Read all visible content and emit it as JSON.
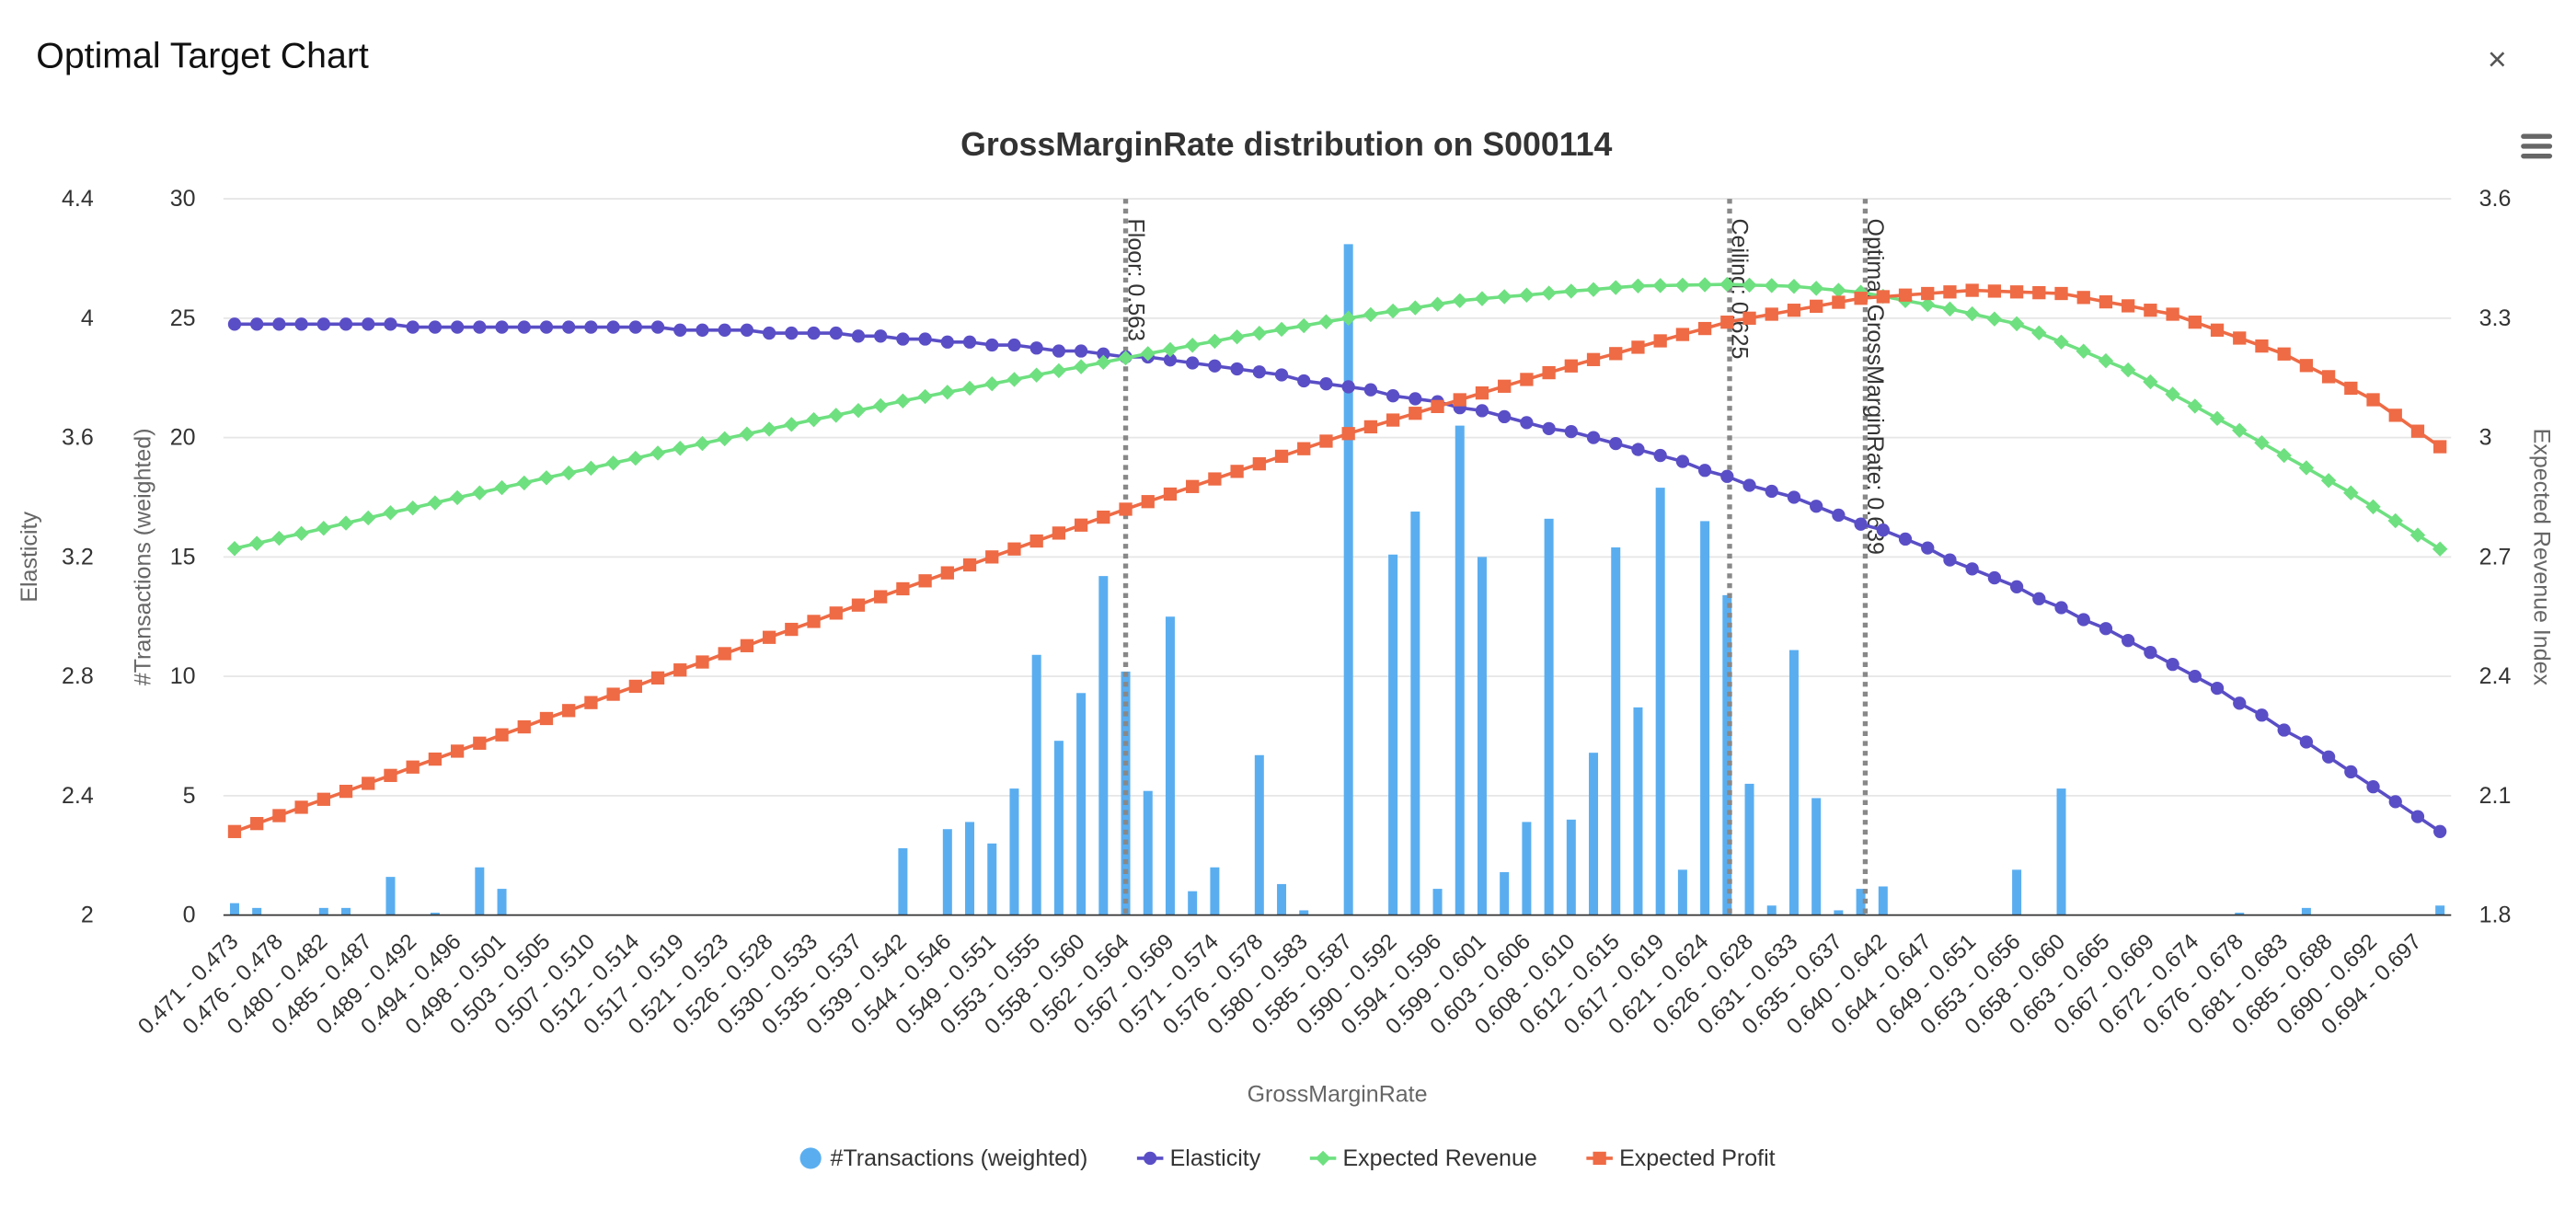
{
  "header": {
    "title": "Optimal Target Chart",
    "close": "×"
  },
  "chart_data": {
    "type": "combo",
    "title": "GrossMarginRate distribution on S000114",
    "x_label": "GrossMarginRate",
    "categories": [
      "0.471 - 0.473",
      null,
      "0.476 - 0.478",
      null,
      "0.480 - 0.482",
      null,
      "0.485 - 0.487",
      null,
      "0.489 - 0.492",
      null,
      "0.494 - 0.496",
      null,
      "0.498 - 0.501",
      null,
      "0.503 - 0.505",
      null,
      "0.507 - 0.510",
      null,
      "0.512 - 0.514",
      null,
      "0.517 - 0.519",
      null,
      "0.521 - 0.523",
      null,
      "0.526 - 0.528",
      null,
      "0.530 - 0.533",
      null,
      "0.535 - 0.537",
      null,
      "0.539 - 0.542",
      null,
      "0.544 - 0.546",
      null,
      "0.549 - 0.551",
      null,
      "0.553 - 0.555",
      null,
      "0.558 - 0.560",
      null,
      "0.562 - 0.564",
      null,
      "0.567 - 0.569",
      null,
      "0.571 - 0.574",
      null,
      "0.576 - 0.578",
      null,
      "0.580 - 0.583",
      null,
      "0.585 - 0.587",
      null,
      "0.590 - 0.592",
      null,
      "0.594 - 0.596",
      null,
      "0.599 - 0.601",
      null,
      "0.603 - 0.606",
      null,
      "0.608 - 0.610",
      null,
      "0.612 - 0.615",
      null,
      "0.617 - 0.619",
      null,
      "0.621 - 0.624",
      null,
      "0.626 - 0.628",
      null,
      "0.631 - 0.633",
      null,
      "0.635 - 0.637",
      null,
      "0.640 - 0.642",
      null,
      "0.644 - 0.647",
      null,
      "0.649 - 0.651",
      null,
      "0.653 - 0.656",
      null,
      "0.658 - 0.660",
      null,
      "0.663 - 0.665",
      null,
      "0.667 - 0.669",
      null,
      "0.672 - 0.674",
      null,
      "0.676 - 0.678",
      null,
      "0.681 - 0.683",
      null,
      "0.685 - 0.688",
      null,
      "0.690 - 0.692",
      null,
      "0.694 - 0.697",
      null
    ],
    "ylabel": "#Transactions (weighted)",
    "ylim": [
      0,
      30
    ],
    "yticks": [
      0,
      5,
      10,
      15,
      20,
      25,
      30
    ],
    "y2label": "Expected Revenue Index",
    "y2lim": [
      1.8,
      3.6
    ],
    "y2ticks": [
      1.8,
      2.1,
      2.4,
      2.7,
      3,
      3.3,
      3.6
    ],
    "y3label": "Elasticity",
    "y3lim": [
      2,
      4.4
    ],
    "y3ticks": [
      2,
      2.4,
      2.8,
      3.2,
      3.6,
      4,
      4.4
    ],
    "grid": true,
    "legend": "bottom",
    "series": [
      {
        "name": "#Transactions (weighted)",
        "type": "bar",
        "axis": "y",
        "color": "#5aaef0",
        "values": [
          0.5,
          0.3,
          0,
          0,
          0.3,
          0.3,
          0,
          1.6,
          0,
          0.1,
          0,
          2.0,
          1.1,
          0,
          0,
          0,
          0,
          0,
          0,
          0,
          0,
          0,
          0,
          0,
          0,
          0,
          0,
          0,
          0,
          0,
          2.8,
          0,
          3.6,
          3.9,
          3.0,
          5.3,
          10.9,
          7.3,
          9.3,
          14.2,
          10.2,
          5.2,
          12.5,
          1.0,
          2.0,
          0,
          6.7,
          1.3,
          0.2,
          0,
          28.1,
          0,
          15.1,
          16.9,
          1.1,
          20.5,
          15.0,
          1.8,
          3.9,
          16.6,
          4.0,
          6.8,
          15.4,
          8.7,
          17.9,
          1.9,
          16.5,
          13.4,
          5.5,
          0.4,
          11.1,
          4.9,
          0.2,
          1.1,
          1.2,
          0,
          0,
          0,
          0,
          0,
          1.9,
          0,
          5.3,
          0,
          0,
          0,
          0,
          0,
          0,
          0,
          0.1,
          0,
          0,
          0.3,
          0,
          0,
          0,
          0,
          0,
          0.4
        ]
      },
      {
        "name": "Elasticity",
        "type": "line",
        "marker": "circle",
        "axis": "y3",
        "color": "#5a4ec6",
        "values": [
          3.98,
          3.98,
          3.98,
          3.98,
          3.98,
          3.98,
          3.98,
          3.98,
          3.97,
          3.97,
          3.97,
          3.97,
          3.97,
          3.97,
          3.97,
          3.97,
          3.97,
          3.97,
          3.97,
          3.97,
          3.96,
          3.96,
          3.96,
          3.96,
          3.95,
          3.95,
          3.95,
          3.95,
          3.94,
          3.94,
          3.93,
          3.93,
          3.92,
          3.92,
          3.91,
          3.91,
          3.9,
          3.89,
          3.89,
          3.88,
          3.87,
          3.87,
          3.86,
          3.85,
          3.84,
          3.83,
          3.82,
          3.81,
          3.79,
          3.78,
          3.77,
          3.76,
          3.74,
          3.73,
          3.72,
          3.7,
          3.69,
          3.67,
          3.65,
          3.63,
          3.62,
          3.6,
          3.58,
          3.56,
          3.54,
          3.52,
          3.49,
          3.47,
          3.44,
          3.42,
          3.4,
          3.37,
          3.34,
          3.31,
          3.29,
          3.26,
          3.23,
          3.19,
          3.16,
          3.13,
          3.1,
          3.06,
          3.03,
          2.99,
          2.96,
          2.92,
          2.88,
          2.84,
          2.8,
          2.76,
          2.71,
          2.67,
          2.62,
          2.58,
          2.53,
          2.48,
          2.43,
          2.38,
          2.33,
          2.28
        ]
      },
      {
        "name": "Expected Revenue",
        "type": "line",
        "marker": "diamond",
        "axis": "y2",
        "color": "#6ee080",
        "values": [
          2.721,
          2.734,
          2.747,
          2.759,
          2.772,
          2.785,
          2.798,
          2.811,
          2.823,
          2.836,
          2.849,
          2.861,
          2.874,
          2.886,
          2.899,
          2.911,
          2.923,
          2.936,
          2.948,
          2.961,
          2.973,
          2.985,
          2.997,
          3.009,
          3.021,
          3.033,
          3.045,
          3.056,
          3.068,
          3.08,
          3.092,
          3.103,
          3.114,
          3.124,
          3.135,
          3.146,
          3.157,
          3.168,
          3.178,
          3.189,
          3.2,
          3.211,
          3.221,
          3.232,
          3.242,
          3.253,
          3.262,
          3.272,
          3.281,
          3.291,
          3.3,
          3.309,
          3.318,
          3.326,
          3.335,
          3.344,
          3.349,
          3.354,
          3.358,
          3.363,
          3.368,
          3.372,
          3.377,
          3.381,
          3.382,
          3.383,
          3.384,
          3.385,
          3.383,
          3.382,
          3.38,
          3.375,
          3.37,
          3.365,
          3.355,
          3.344,
          3.334,
          3.323,
          3.311,
          3.298,
          3.286,
          3.263,
          3.24,
          3.217,
          3.193,
          3.17,
          3.14,
          3.109,
          3.079,
          3.048,
          3.018,
          2.987,
          2.955,
          2.924,
          2.892,
          2.861,
          2.826,
          2.791,
          2.755,
          2.72
        ]
      },
      {
        "name": "Expected Profit",
        "type": "line",
        "marker": "square",
        "axis": "y2",
        "color": "#ee6b45",
        "values": [
          2.01,
          2.03,
          2.05,
          2.071,
          2.091,
          2.111,
          2.131,
          2.151,
          2.172,
          2.192,
          2.212,
          2.232,
          2.253,
          2.273,
          2.294,
          2.314,
          2.334,
          2.355,
          2.375,
          2.396,
          2.416,
          2.436,
          2.457,
          2.477,
          2.498,
          2.518,
          2.538,
          2.559,
          2.579,
          2.6,
          2.62,
          2.64,
          2.66,
          2.68,
          2.7,
          2.72,
          2.74,
          2.76,
          2.78,
          2.8,
          2.82,
          2.839,
          2.858,
          2.877,
          2.896,
          2.915,
          2.934,
          2.953,
          2.972,
          2.991,
          3.01,
          3.027,
          3.044,
          3.061,
          3.078,
          3.095,
          3.112,
          3.129,
          3.146,
          3.163,
          3.18,
          3.196,
          3.211,
          3.227,
          3.243,
          3.259,
          3.274,
          3.29,
          3.3,
          3.31,
          3.32,
          3.33,
          3.34,
          3.35,
          3.354,
          3.358,
          3.362,
          3.366,
          3.37,
          3.368,
          3.366,
          3.364,
          3.362,
          3.352,
          3.341,
          3.331,
          3.32,
          3.31,
          3.29,
          3.27,
          3.25,
          3.23,
          3.21,
          3.181,
          3.153,
          3.124,
          3.095,
          3.056,
          3.016,
          2.977
        ]
      }
    ],
    "plot_lines": [
      {
        "value": 0.563,
        "label": "Floor: 0.563"
      },
      {
        "value": 0.625,
        "label": "Ceiling: 0.625"
      },
      {
        "value": 0.639,
        "label": "Optimal GrossMarginRate: 0.639"
      }
    ]
  }
}
